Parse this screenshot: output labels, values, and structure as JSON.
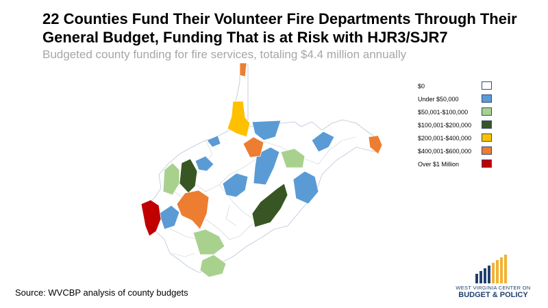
{
  "title": "22 Counties Fund Their Volunteer Fire Departments Through Their General Budget, Funding That is at Risk with HJR3/SJR7",
  "subtitle": "Budgeted county funding for fire services, totaling $4.4 million annually",
  "source": "Source: WVCBP analysis of county budgets",
  "legend": [
    {
      "label": "$0",
      "color": "#ffffff"
    },
    {
      "label": "Under $50,000",
      "color": "#5b9bd5"
    },
    {
      "label": "$50,001-$100,000",
      "color": "#a9d18e"
    },
    {
      "label": "$100,001-$200,000",
      "color": "#375623"
    },
    {
      "label": "$200,001-$400,000",
      "color": "#ffc000"
    },
    {
      "label": "$400,001-$600,000",
      "color": "#ed7d31"
    },
    {
      "label": "Over $1 Million",
      "color": "#c00000"
    }
  ],
  "logo": {
    "line1": "WEST VIRGINIA CENTER ON",
    "line2": "BUDGET & POLICY",
    "bar_color_dark": "#1f3f6e",
    "bar_color_accent": "#f2b134"
  }
}
